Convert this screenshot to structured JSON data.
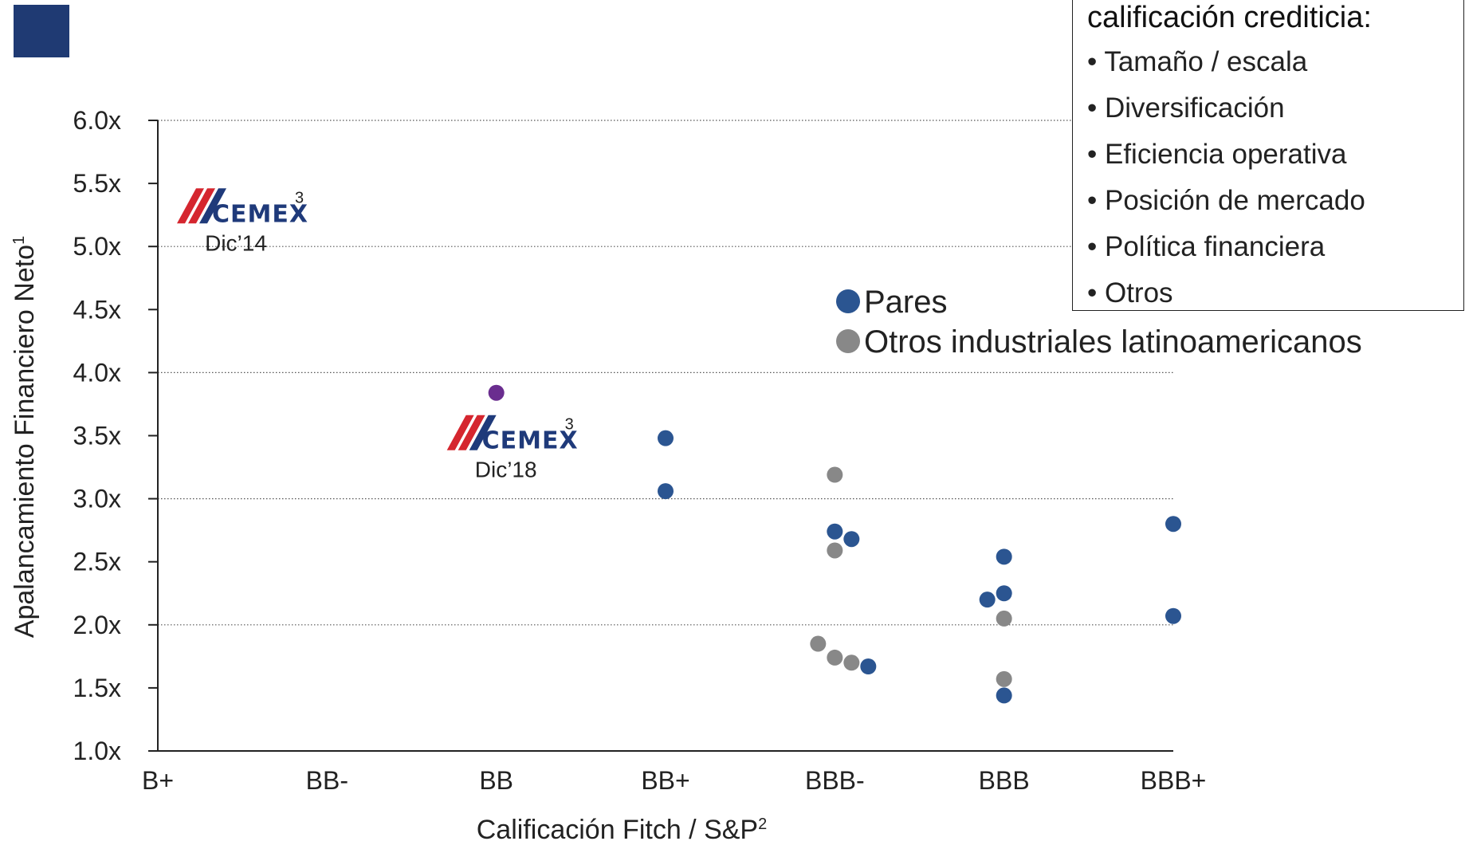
{
  "factors_box": {
    "title": "calificación crediticia:",
    "items": [
      "• Tamaño / escala",
      "• Diversificación",
      "• Eficiencia operativa",
      "• Posición de mercado",
      "• Política financiera",
      "• Otros"
    ]
  },
  "chart_data": {
    "type": "scatter",
    "xlabel": "Calificación Fitch / S&P",
    "xlabel_sup": "2",
    "ylabel": "Apalancamiento Financiero Neto",
    "ylabel_sup": "1",
    "categories": [
      "B+",
      "BB-",
      "BB",
      "BB+",
      "BBB-",
      "BBB",
      "BBB+"
    ],
    "ylim": [
      1.0,
      6.0
    ],
    "yticks": [
      "1.0x",
      "1.5x",
      "2.0x",
      "2.5x",
      "3.0x",
      "3.5x",
      "4.0x",
      "4.5x",
      "5.0x",
      "5.5x",
      "6.0x"
    ],
    "ytick_values": [
      1.0,
      1.5,
      2.0,
      2.5,
      3.0,
      3.5,
      4.0,
      4.5,
      5.0,
      5.5,
      6.0
    ],
    "grid": "horizontal dotted at 2.0x, 3.0x, 4.0x, 5.0x, 6.0x",
    "gridlines": [
      2.0,
      3.0,
      4.0,
      5.0,
      6.0
    ],
    "legend_position": "center-right",
    "series": [
      {
        "name": "Pares",
        "color": "#2b5591",
        "points": [
          {
            "x": "BB+",
            "y": 3.48
          },
          {
            "x": "BB+",
            "y": 3.06
          },
          {
            "x": "BBB-",
            "y": 2.74
          },
          {
            "x": "BBB-",
            "y": 2.68
          },
          {
            "x": "BBB-",
            "y": 1.67
          },
          {
            "x": "BBB",
            "y": 2.54
          },
          {
            "x": "BBB",
            "y": 2.25
          },
          {
            "x": "BBB",
            "y": 2.2
          },
          {
            "x": "BBB",
            "y": 1.44
          },
          {
            "x": "BBB+",
            "y": 2.8
          },
          {
            "x": "BBB+",
            "y": 2.07
          }
        ]
      },
      {
        "name": "Otros industriales latinoamericanos",
        "color": "#888888",
        "points": [
          {
            "x": "BBB-",
            "y": 3.19
          },
          {
            "x": "BBB-",
            "y": 2.59
          },
          {
            "x": "BBB-",
            "y": 1.85
          },
          {
            "x": "BBB-",
            "y": 1.74
          },
          {
            "x": "BBB-",
            "y": 1.7
          },
          {
            "x": "BBB",
            "y": 2.05
          },
          {
            "x": "BBB",
            "y": 1.57
          }
        ]
      }
    ],
    "annotations": [
      {
        "logo": "CEMEX",
        "sup": "3",
        "label": "Dic’14",
        "x": "B+",
        "y": 5.6
      },
      {
        "logo": "CEMEX",
        "sup": "3",
        "label": "Dic’18",
        "x": "BB",
        "y": 3.84,
        "marker_color": "#6a2d8f"
      }
    ]
  },
  "colors": {
    "accent_square": "#1f3a73",
    "logo_red": "#d5262f",
    "logo_blue": "#1f3a7a"
  }
}
